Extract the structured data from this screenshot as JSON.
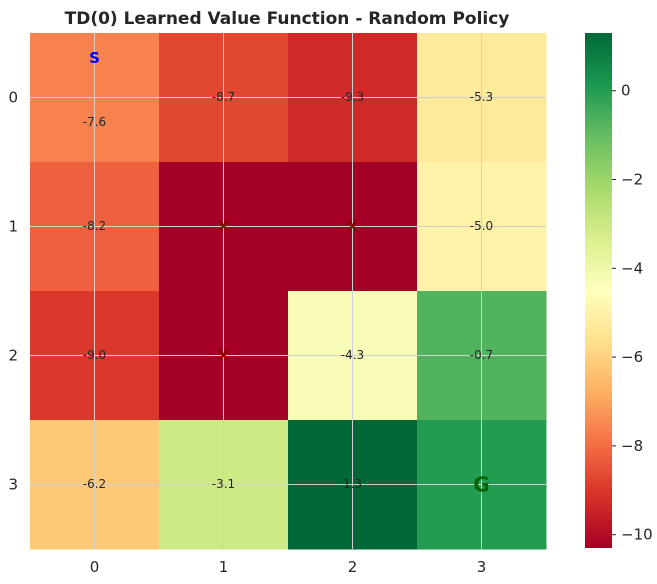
{
  "chart_data": {
    "type": "heatmap",
    "title": "TD(0) Learned Value Function - Random Policy",
    "x_ticks": [
      "0",
      "1",
      "2",
      "3"
    ],
    "y_ticks": [
      "0",
      "1",
      "2",
      "3"
    ],
    "values": [
      [
        -7.6,
        -8.7,
        -9.3,
        -5.3
      ],
      [
        -8.2,
        -10.3,
        -10.3,
        -5.0
      ],
      [
        -9.0,
        -10.3,
        -4.3,
        -0.7
      ],
      [
        -6.2,
        -3.1,
        1.3,
        0.0
      ]
    ],
    "cell_labels": [
      [
        "-7.6",
        "-8.7",
        "-9.3",
        "-5.3"
      ],
      [
        "-8.2",
        "",
        "",
        "-5.0"
      ],
      [
        "-9.0",
        "",
        "-4.3",
        "-0.7"
      ],
      [
        "-6.2",
        "-3.1",
        "1.3",
        ""
      ]
    ],
    "markers": [
      {
        "row": 0,
        "col": 0,
        "text": "S",
        "kind": "start"
      },
      {
        "row": 1,
        "col": 1,
        "text": "X",
        "kind": "wall"
      },
      {
        "row": 1,
        "col": 2,
        "text": "X",
        "kind": "wall"
      },
      {
        "row": 2,
        "col": 1,
        "text": "X",
        "kind": "wall"
      },
      {
        "row": 3,
        "col": 3,
        "text": "G",
        "kind": "goal"
      }
    ],
    "colormap": "RdYlGn",
    "vmin": -10.3,
    "vmax": 1.3,
    "colorbar_ticks": [
      0,
      -2,
      -4,
      -6,
      -8,
      -10
    ],
    "colorbar_tick_labels": [
      "0",
      "−2",
      "−4",
      "−6",
      "−8",
      "−10"
    ],
    "grid": true
  }
}
